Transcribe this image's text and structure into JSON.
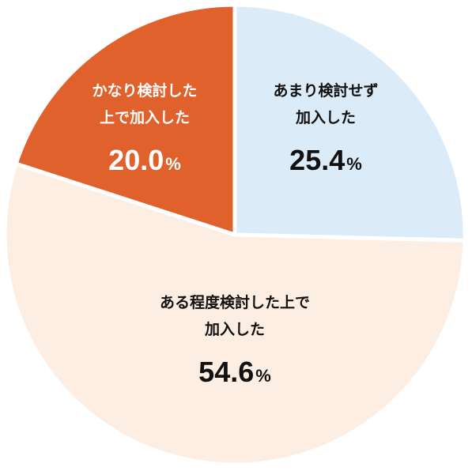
{
  "chart_data": {
    "type": "pie",
    "title": "",
    "slices": [
      {
        "label_lines": [
          "あまり検討せず",
          "加入した"
        ],
        "value": 25.4,
        "value_text": "25.4",
        "unit": "%",
        "color": "#dbebf7",
        "text_color": "#111111"
      },
      {
        "label_lines": [
          "ある程度検討した上で",
          "加入した"
        ],
        "value": 54.6,
        "value_text": "54.6",
        "unit": "%",
        "color": "#fdeee3",
        "text_color": "#111111"
      },
      {
        "label_lines": [
          "かなり検討した",
          "上で加入した"
        ],
        "value": 20.0,
        "value_text": "20.0",
        "unit": "%",
        "color": "#e0612b",
        "text_color": "#ffffff"
      }
    ],
    "start_angle": "12 o'clock",
    "direction": "clockwise",
    "legend": "none"
  }
}
